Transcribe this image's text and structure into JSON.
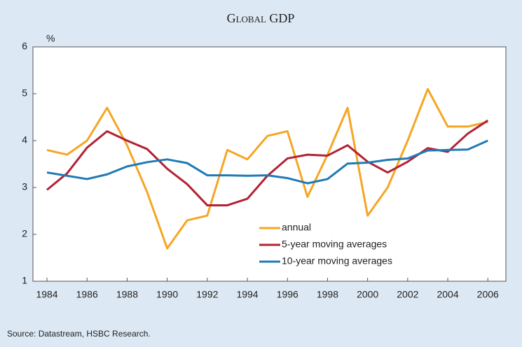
{
  "chart_data": {
    "type": "line",
    "title": "Global GDP",
    "y_unit": "%",
    "source": "Source: Datastream, HSBC Research.",
    "x": [
      1984,
      1985,
      1986,
      1987,
      1988,
      1989,
      1990,
      1991,
      1992,
      1993,
      1994,
      1995,
      1996,
      1997,
      1998,
      1999,
      2000,
      2001,
      2002,
      2003,
      2004,
      2005,
      2006
    ],
    "series": [
      {
        "name": "annual",
        "color": "#f5a623",
        "values": [
          3.8,
          3.7,
          4.0,
          4.7,
          3.9,
          2.9,
          1.7,
          2.3,
          2.4,
          3.8,
          3.6,
          4.1,
          4.2,
          2.8,
          3.7,
          4.7,
          2.4,
          3.0,
          4.0,
          5.1,
          4.3,
          4.3,
          4.4
        ]
      },
      {
        "name": "5-year moving averages",
        "color": "#b22234",
        "values": [
          2.95,
          3.3,
          3.85,
          4.2,
          4.0,
          3.82,
          3.4,
          3.07,
          2.62,
          2.62,
          2.76,
          3.25,
          3.62,
          3.7,
          3.68,
          3.9,
          3.55,
          3.32,
          3.55,
          3.84,
          3.76,
          4.15,
          4.43
        ]
      },
      {
        "name": "10-year moving averages",
        "color": "#1f7ab5",
        "values": [
          3.32,
          3.25,
          3.18,
          3.28,
          3.45,
          3.54,
          3.6,
          3.52,
          3.26,
          3.26,
          3.25,
          3.26,
          3.2,
          3.09,
          3.18,
          3.51,
          3.53,
          3.59,
          3.62,
          3.79,
          3.8,
          3.81,
          4.0
        ]
      }
    ],
    "xlim": [
      1983.3,
      2006.9
    ],
    "xticks": [
      1984,
      1986,
      1988,
      1990,
      1992,
      1994,
      1996,
      1998,
      2000,
      2002,
      2004,
      2006
    ],
    "ylim": [
      1,
      6
    ],
    "yticks": [
      1,
      2,
      3,
      4,
      5,
      6
    ],
    "grid": false
  }
}
